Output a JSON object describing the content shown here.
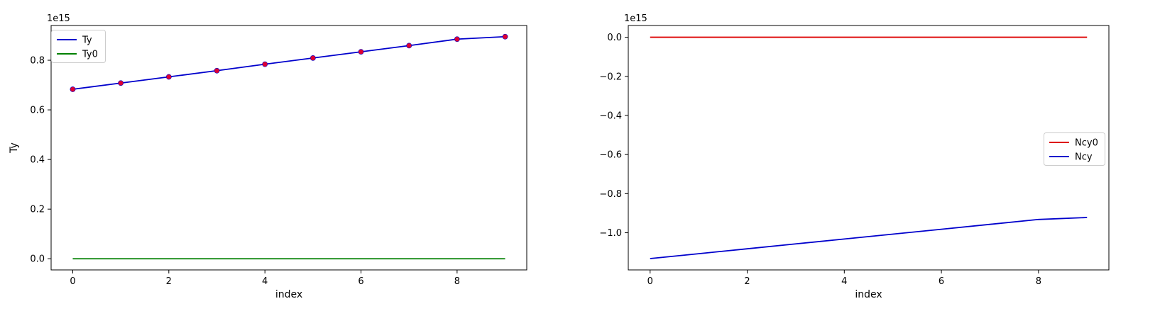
{
  "chart_data": [
    {
      "type": "line",
      "title": "",
      "xlabel": "index",
      "ylabel": "Ty",
      "offset_text": "1e15",
      "xlim": [
        -0.45,
        9.45
      ],
      "ylim": [
        -0.045,
        0.94
      ],
      "x_ticks": [
        0,
        2,
        4,
        6,
        8
      ],
      "x_tick_labels": [
        "0",
        "2",
        "4",
        "6",
        "8"
      ],
      "y_ticks": [
        0.0,
        0.2,
        0.4,
        0.6,
        0.8
      ],
      "y_tick_labels": [
        "0.0",
        "0.2",
        "0.4",
        "0.6",
        "0.8"
      ],
      "legend": {
        "placement": "upper-left",
        "entries": [
          "Ty",
          "Ty0"
        ]
      },
      "x": [
        0,
        1,
        2,
        3,
        4,
        5,
        6,
        7,
        8,
        9
      ],
      "series": [
        {
          "name": "Ty",
          "color": "#0000cc",
          "values": [
            0.683,
            0.708,
            0.733,
            0.758,
            0.784,
            0.809,
            0.834,
            0.859,
            0.885,
            0.895
          ],
          "markers": true,
          "marker_color": "#dd0033"
        },
        {
          "name": "Ty0",
          "color": "#008000",
          "values": [
            0,
            0,
            0,
            0,
            0,
            0,
            0,
            0,
            0,
            0
          ],
          "markers": false
        }
      ]
    },
    {
      "type": "line",
      "title": "",
      "xlabel": "index",
      "ylabel": "",
      "offset_text": "1e15",
      "xlim": [
        -0.45,
        9.45
      ],
      "ylim": [
        -1.19,
        0.06
      ],
      "x_ticks": [
        0,
        2,
        4,
        6,
        8
      ],
      "x_tick_labels": [
        "0",
        "2",
        "4",
        "6",
        "8"
      ],
      "y_ticks": [
        0.0,
        -0.2,
        -0.4,
        -0.6,
        -0.8,
        -1.0
      ],
      "y_tick_labels": [
        "0.0",
        "−0.2",
        "−0.4",
        "−0.6",
        "−0.8",
        "−1.0"
      ],
      "legend": {
        "placement": "center-right",
        "entries": [
          "Ncy0",
          "Ncy"
        ]
      },
      "x": [
        0,
        1,
        2,
        3,
        4,
        5,
        6,
        7,
        8,
        9
      ],
      "series": [
        {
          "name": "Ncy0",
          "color": "#dd0000",
          "values": [
            0,
            0,
            0,
            0,
            0,
            0,
            0,
            0,
            0,
            0
          ],
          "markers": false
        },
        {
          "name": "Ncy",
          "color": "#0000cc",
          "values": [
            -1.132,
            -1.107,
            -1.082,
            -1.057,
            -1.032,
            -1.007,
            -0.982,
            -0.957,
            -0.932,
            -0.922
          ],
          "markers": false
        }
      ]
    }
  ]
}
